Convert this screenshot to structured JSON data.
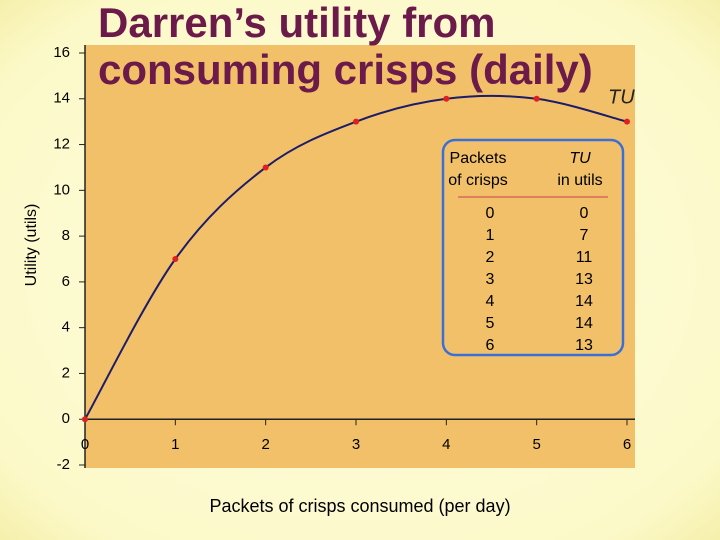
{
  "chart_data": {
    "type": "line",
    "title": [
      "Darren’s utility from",
      "consuming crisps (daily)"
    ],
    "xlabel": "Packets of crisps consumed (per day)",
    "ylabel": "Utility (utils)",
    "x": [
      0,
      1,
      2,
      3,
      4,
      5,
      6
    ],
    "series": [
      {
        "name": "TU",
        "color": "#1c1c6b",
        "marker_color": "#e02020",
        "values": [
          0,
          7,
          11,
          13,
          14,
          14,
          13
        ]
      }
    ],
    "xlim": [
      0,
      6
    ],
    "xticks": [
      0,
      1,
      2,
      3,
      4,
      5,
      6
    ],
    "ylim": [
      -2,
      16
    ],
    "yticks": [
      -2,
      0,
      2,
      4,
      6,
      8,
      10,
      12,
      14,
      16
    ],
    "table": {
      "header": [
        [
          "Packets",
          "of crisps"
        ],
        [
          "TU",
          "in utils"
        ]
      ],
      "rows": [
        [
          0,
          0
        ],
        [
          1,
          7
        ],
        [
          2,
          11
        ],
        [
          3,
          13
        ],
        [
          4,
          14
        ],
        [
          5,
          14
        ],
        [
          6,
          13
        ]
      ]
    }
  }
}
